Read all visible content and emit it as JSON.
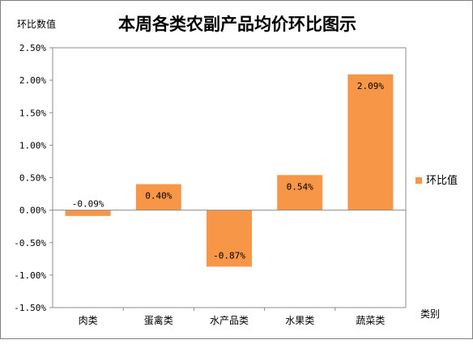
{
  "chart_data": {
    "type": "bar",
    "title": "本周各类农副产品均价环比图示",
    "ylabel": "环比数值",
    "xlabel": "类别",
    "categories": [
      "肉类",
      "蛋禽类",
      "水产品类",
      "水果类",
      "蔬菜类"
    ],
    "series": [
      {
        "name": "环比值",
        "values": [
          -0.09,
          0.4,
          -0.87,
          0.54,
          2.09
        ],
        "data_labels": [
          "-0.09%",
          "0.40%",
          "-0.87%",
          "0.54%",
          "2.09%"
        ],
        "color": "#F79646"
      }
    ],
    "ylim": [
      -1.5,
      2.5
    ],
    "yticks": [
      2.5,
      2.0,
      1.5,
      1.0,
      0.5,
      0.0,
      -0.5,
      -1.0,
      -1.5
    ],
    "ytick_labels": [
      "2.50%",
      "2.00%",
      "1.50%",
      "1.00%",
      "0.50%",
      "0.00%",
      "-0.50%",
      "-1.00%",
      "-1.50%"
    ],
    "grid": false,
    "legend_position": "right"
  }
}
